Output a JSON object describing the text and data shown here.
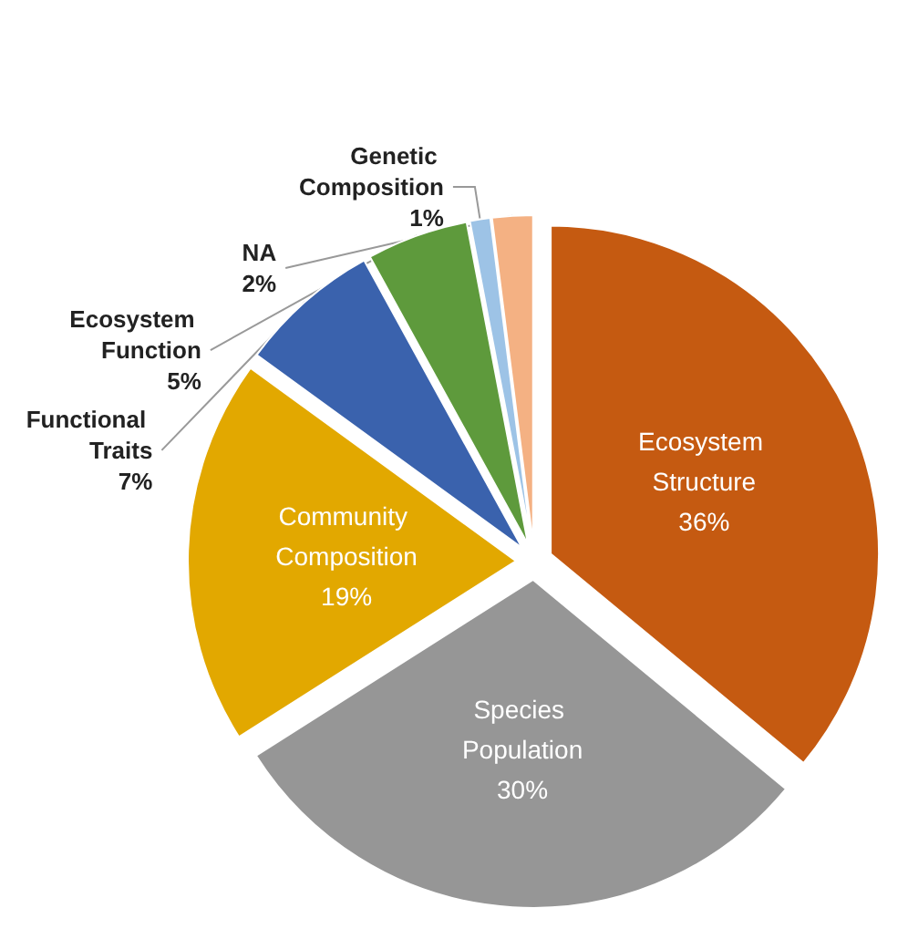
{
  "chart_data": {
    "type": "pie",
    "categories": [
      "Ecosystem Structure",
      "Species Population",
      "Community Composition",
      "Functional Traits",
      "Ecosystem Function",
      "Genetic Composition",
      "NA"
    ],
    "values": [
      36,
      30,
      19,
      7,
      5,
      1,
      2
    ],
    "value_labels": [
      "36%",
      "30%",
      "19%",
      "7%",
      "5%",
      "1%",
      "2%"
    ],
    "colors": [
      "#c55a11",
      "#969696",
      "#e2a800",
      "#3a62ad",
      "#5e9a3c",
      "#9dc3e6",
      "#f4b183"
    ],
    "legend": false
  }
}
